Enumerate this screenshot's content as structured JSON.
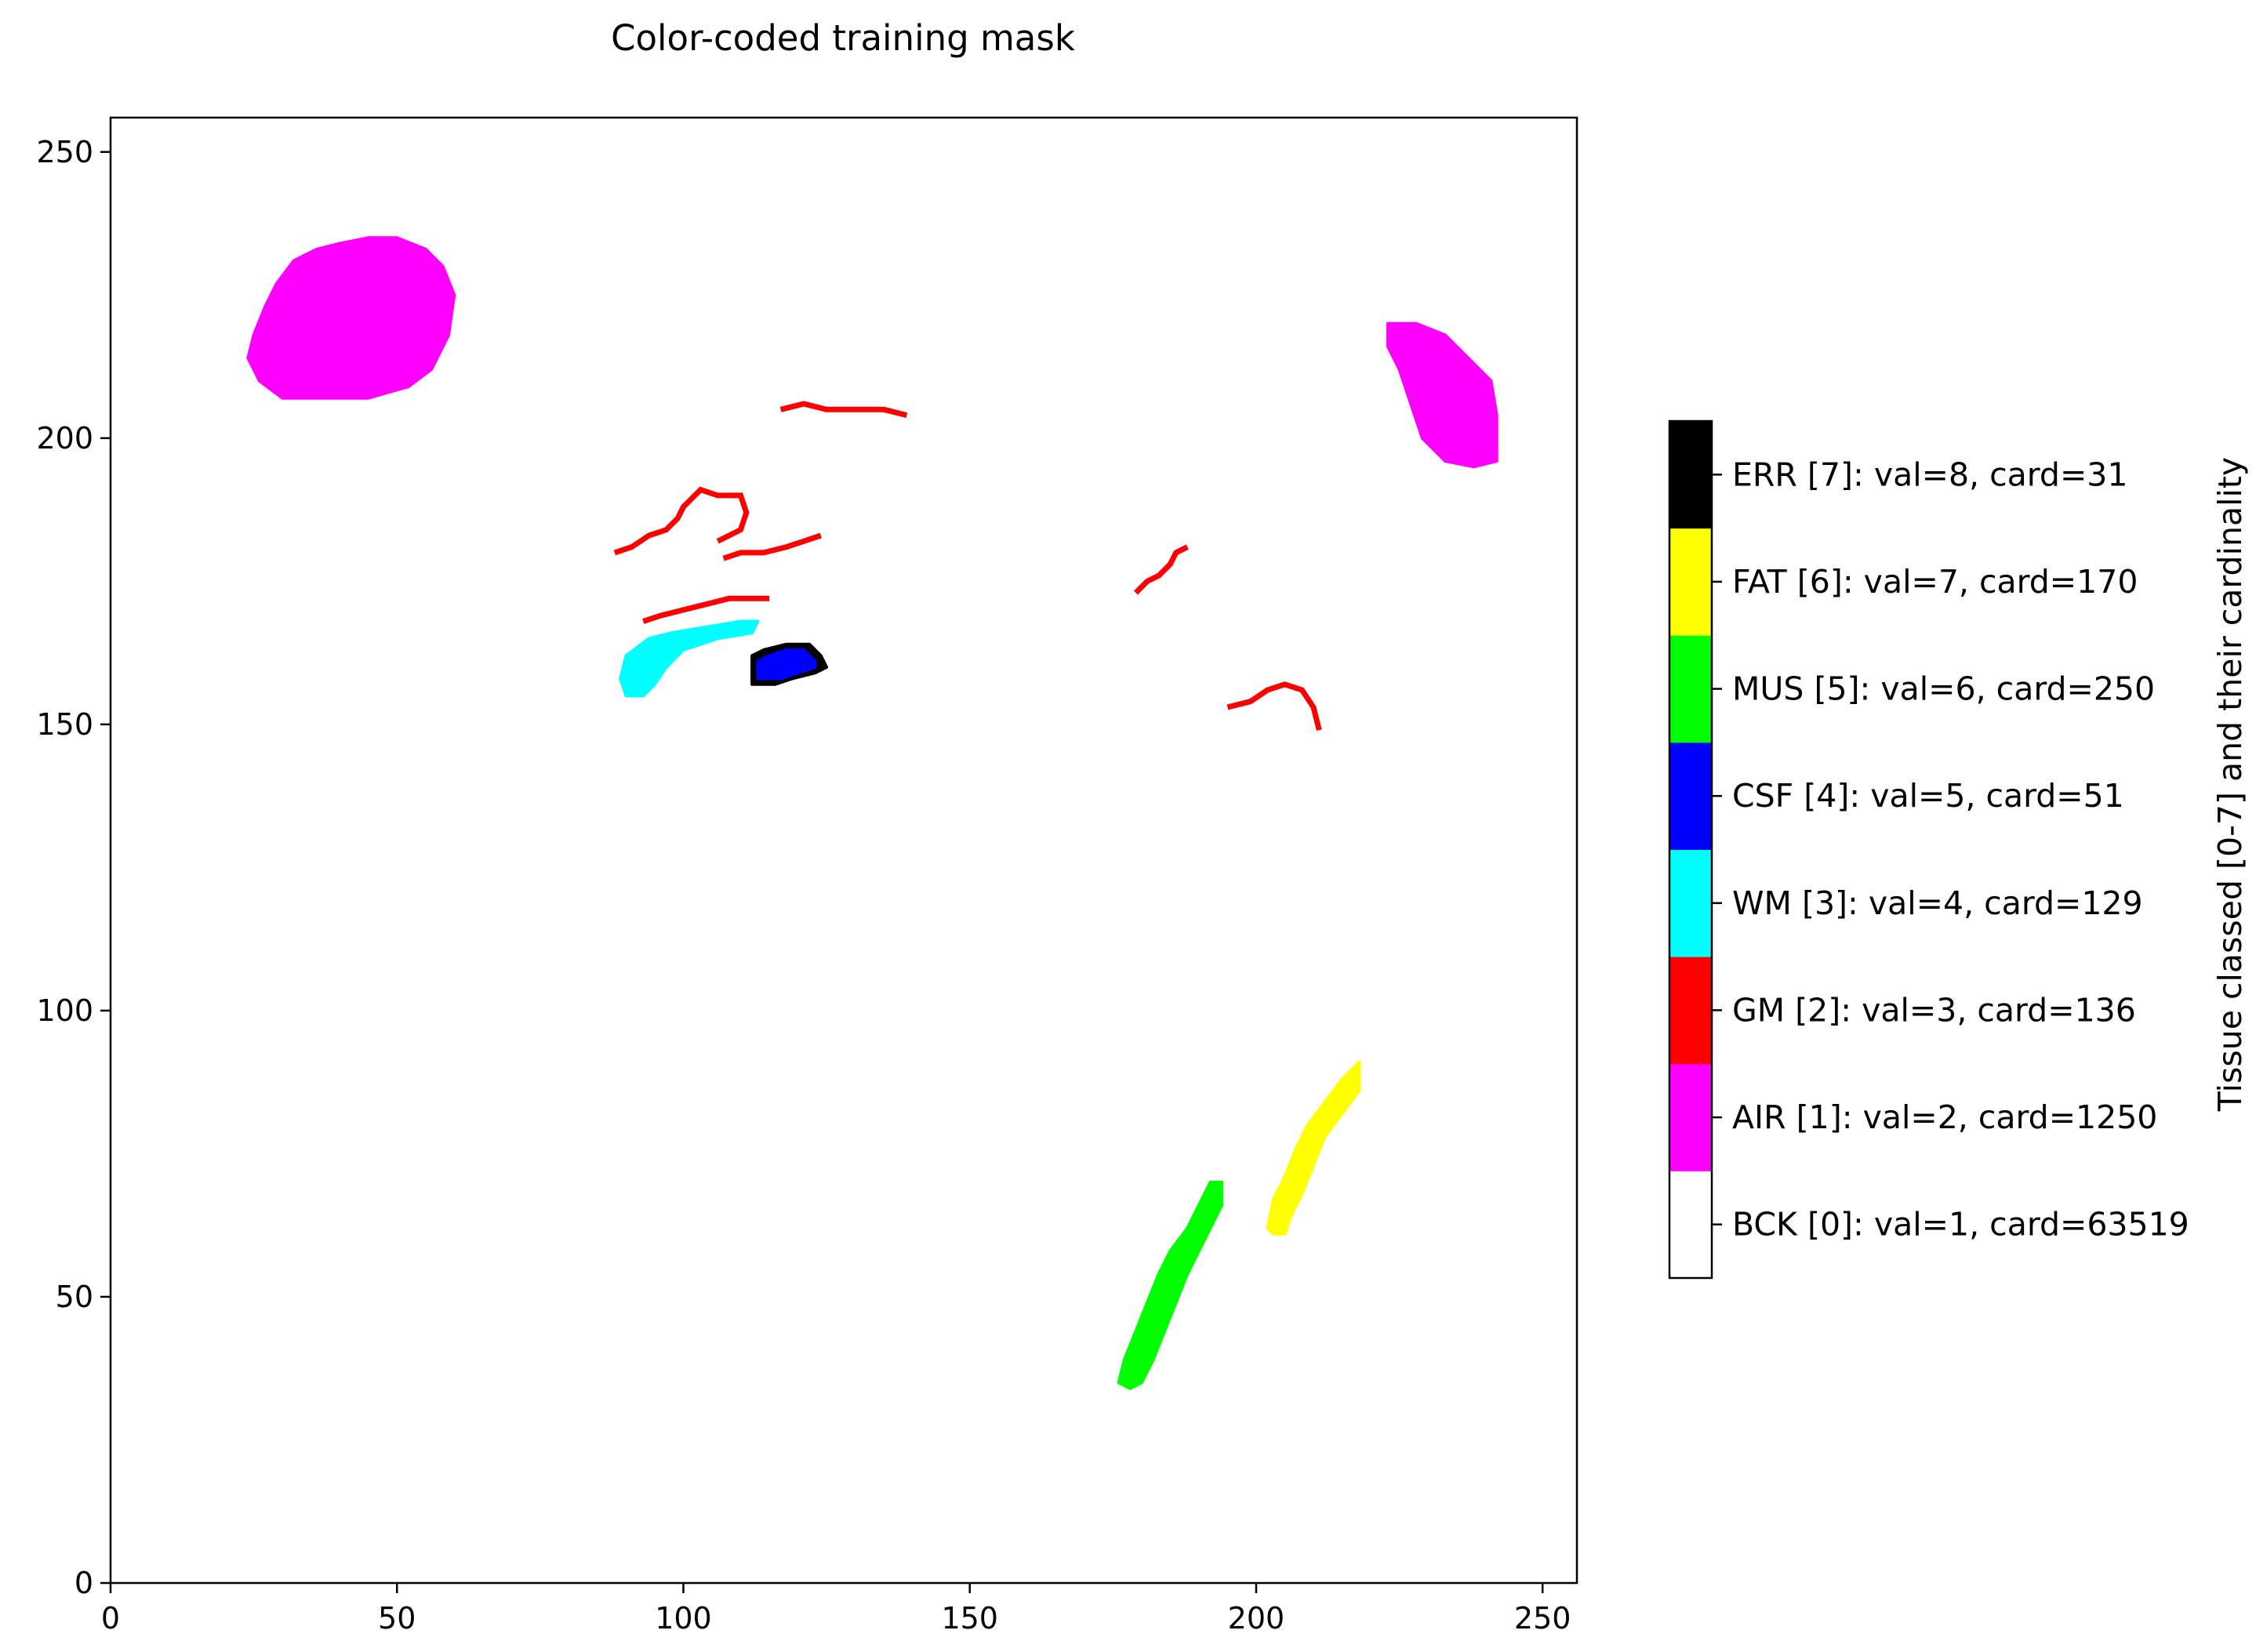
{
  "chart_data": {
    "type": "heatmap",
    "title": "Color-coded training mask",
    "xlabel": "",
    "ylabel": "",
    "xlim": [
      0,
      256
    ],
    "ylim": [
      0,
      256
    ],
    "xticks": [
      0,
      50,
      100,
      150,
      200,
      250
    ],
    "yticks": [
      0,
      50,
      100,
      150,
      200,
      250
    ],
    "grid": false,
    "colorbar": {
      "label": "Tissue classed [0-7] and their cardinality",
      "placement": "right",
      "classes": [
        {
          "label": "BCK [0]: val=1, card=63519",
          "value": 1,
          "cardinality": 63519,
          "color": "#ffffff"
        },
        {
          "label": "AIR [1]: val=2, card=1250",
          "value": 2,
          "cardinality": 1250,
          "color": "#ff00ff"
        },
        {
          "label": "GM [2]: val=3, card=136",
          "value": 3,
          "cardinality": 136,
          "color": "#ff0000"
        },
        {
          "label": "WM [3]: val=4, card=129",
          "value": 4,
          "cardinality": 129,
          "color": "#00ffff"
        },
        {
          "label": "CSF [4]: val=5, card=51",
          "value": 5,
          "cardinality": 51,
          "color": "#0000ff"
        },
        {
          "label": "MUS [5]: val=6, card=250",
          "value": 6,
          "cardinality": 250,
          "color": "#00ff00"
        },
        {
          "label": "FAT [6]: val=7, card=170",
          "value": 7,
          "cardinality": 170,
          "color": "#ffff00"
        },
        {
          "label": "ERR [7]: val=8, card=31",
          "value": 8,
          "cardinality": 31,
          "color": "#000000"
        }
      ]
    },
    "regions": [
      {
        "class": "AIR",
        "color": "#ff00ff",
        "outline": [
          [
            25,
            218
          ],
          [
            27,
            223
          ],
          [
            29,
            227
          ],
          [
            32,
            231
          ],
          [
            36,
            233
          ],
          [
            40,
            234
          ],
          [
            45,
            235
          ],
          [
            50,
            235
          ],
          [
            55,
            233
          ],
          [
            58,
            230
          ],
          [
            60,
            225
          ],
          [
            59,
            218
          ],
          [
            56,
            212
          ],
          [
            52,
            209
          ],
          [
            45,
            207
          ],
          [
            37,
            207
          ],
          [
            30,
            207
          ],
          [
            26,
            210
          ],
          [
            24,
            214
          ]
        ]
      },
      {
        "class": "AIR",
        "color": "#ff00ff",
        "outline": [
          [
            223,
            220
          ],
          [
            228,
            220
          ],
          [
            233,
            218
          ],
          [
            237,
            214
          ],
          [
            241,
            210
          ],
          [
            242,
            204
          ],
          [
            242,
            196
          ],
          [
            238,
            195
          ],
          [
            233,
            196
          ],
          [
            229,
            200
          ],
          [
            227,
            206
          ],
          [
            225,
            212
          ],
          [
            223,
            216
          ]
        ]
      },
      {
        "class": "GM",
        "color": "#ff0000",
        "stroke": [
          [
            117,
            205
          ],
          [
            121,
            206
          ],
          [
            125,
            205
          ],
          [
            130,
            205
          ],
          [
            135,
            205
          ],
          [
            139,
            204
          ]
        ]
      },
      {
        "class": "GM",
        "color": "#ff0000",
        "stroke": [
          [
            88,
            180
          ],
          [
            91,
            181
          ],
          [
            94,
            183
          ],
          [
            97,
            184
          ],
          [
            99,
            186
          ],
          [
            100,
            188
          ],
          [
            103,
            191
          ],
          [
            106,
            190
          ],
          [
            110,
            190
          ],
          [
            111,
            187
          ],
          [
            110,
            184
          ],
          [
            108,
            183
          ],
          [
            106,
            182
          ]
        ]
      },
      {
        "class": "GM",
        "color": "#ff0000",
        "stroke": [
          [
            107,
            179
          ],
          [
            110,
            180
          ],
          [
            114,
            180
          ],
          [
            118,
            181
          ],
          [
            121,
            182
          ],
          [
            124,
            183
          ]
        ]
      },
      {
        "class": "GM",
        "color": "#ff0000",
        "stroke": [
          [
            93,
            168
          ],
          [
            96,
            169
          ],
          [
            100,
            170
          ],
          [
            104,
            171
          ],
          [
            108,
            172
          ],
          [
            115,
            172
          ]
        ]
      },
      {
        "class": "GM",
        "color": "#ff0000",
        "stroke": [
          [
            179,
            173
          ],
          [
            181,
            175
          ],
          [
            183,
            176
          ],
          [
            185,
            178
          ],
          [
            186,
            180
          ],
          [
            188,
            181
          ]
        ]
      },
      {
        "class": "GM",
        "color": "#ff0000",
        "stroke": [
          [
            195,
            153
          ],
          [
            199,
            154
          ],
          [
            202,
            156
          ],
          [
            205,
            157
          ],
          [
            208,
            156
          ],
          [
            210,
            153
          ],
          [
            211,
            149
          ]
        ]
      },
      {
        "class": "WM",
        "color": "#00ffff",
        "outline": [
          [
            89,
            158
          ],
          [
            90,
            162
          ],
          [
            94,
            165
          ],
          [
            98,
            166
          ],
          [
            104,
            167
          ],
          [
            110,
            168
          ],
          [
            113,
            168
          ],
          [
            112,
            166
          ],
          [
            106,
            165
          ],
          [
            100,
            163
          ],
          [
            97,
            160
          ],
          [
            95,
            157
          ],
          [
            93,
            155
          ],
          [
            90,
            155
          ]
        ]
      },
      {
        "class": "ERR",
        "color": "#000000",
        "outline": [
          [
            112,
            157
          ],
          [
            112,
            162
          ],
          [
            114,
            163
          ],
          [
            118,
            164
          ],
          [
            122,
            164
          ],
          [
            124,
            162
          ],
          [
            125,
            160
          ],
          [
            123,
            159
          ],
          [
            119,
            158
          ],
          [
            116,
            157
          ]
        ]
      },
      {
        "class": "CSF",
        "color": "#0000ff",
        "outline": [
          [
            113,
            158
          ],
          [
            113,
            161
          ],
          [
            115,
            162
          ],
          [
            118,
            163
          ],
          [
            121,
            163
          ],
          [
            123,
            161
          ],
          [
            123,
            160
          ],
          [
            120,
            159
          ],
          [
            117,
            158
          ]
        ]
      },
      {
        "class": "MUS",
        "color": "#00ff00",
        "outline": [
          [
            176,
            35
          ],
          [
            177,
            39
          ],
          [
            179,
            44
          ],
          [
            181,
            49
          ],
          [
            183,
            54
          ],
          [
            185,
            58
          ],
          [
            188,
            62
          ],
          [
            190,
            66
          ],
          [
            192,
            70
          ],
          [
            194,
            70
          ],
          [
            194,
            66
          ],
          [
            192,
            62
          ],
          [
            190,
            58
          ],
          [
            188,
            54
          ],
          [
            186,
            49
          ],
          [
            184,
            44
          ],
          [
            182,
            39
          ],
          [
            180,
            35
          ],
          [
            178,
            34
          ]
        ]
      },
      {
        "class": "FAT",
        "color": "#ffff00",
        "outline": [
          [
            202,
            62
          ],
          [
            203,
            67
          ],
          [
            205,
            71
          ],
          [
            207,
            76
          ],
          [
            209,
            80
          ],
          [
            212,
            84
          ],
          [
            215,
            88
          ],
          [
            218,
            91
          ],
          [
            218,
            86
          ],
          [
            215,
            82
          ],
          [
            212,
            78
          ],
          [
            210,
            73
          ],
          [
            208,
            68
          ],
          [
            206,
            64
          ],
          [
            205,
            61
          ],
          [
            203,
            61
          ]
        ]
      }
    ]
  }
}
